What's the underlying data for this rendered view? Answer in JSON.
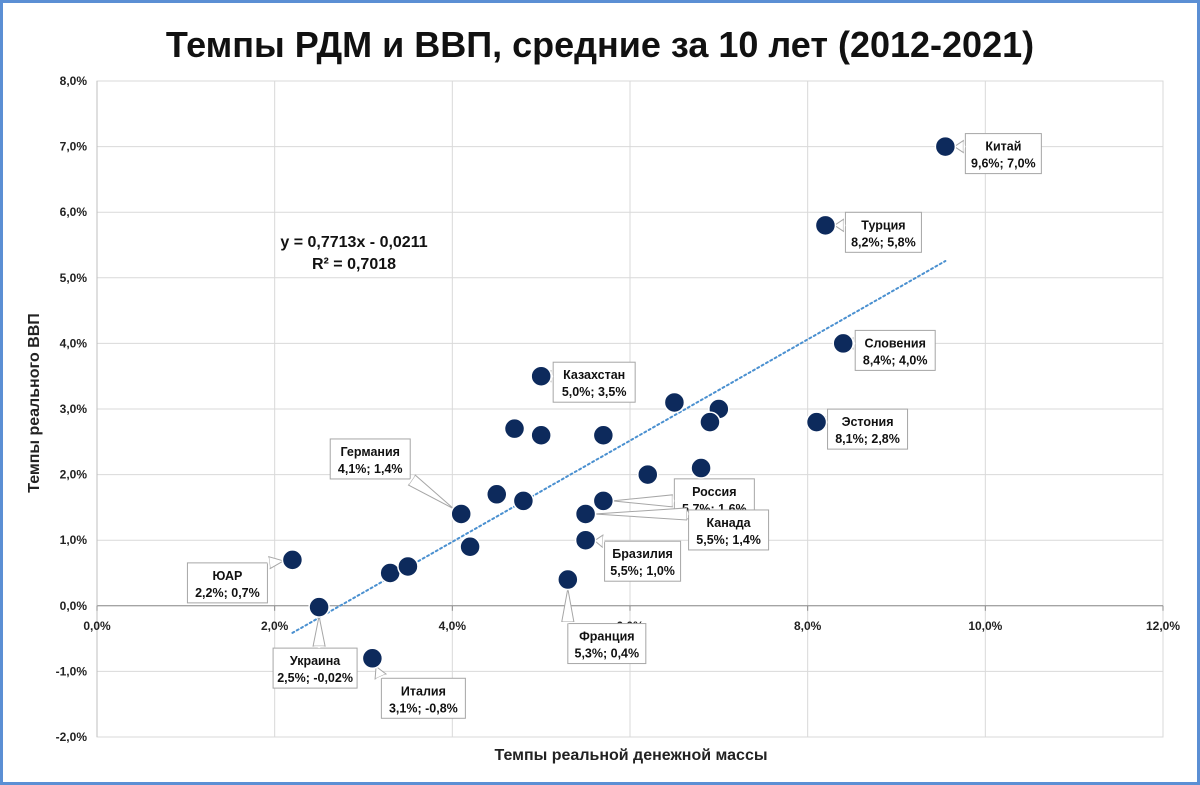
{
  "chart_data": {
    "type": "scatter",
    "title": "Темпы РДМ и ВВП, средние за 10 лет (2012-2021)",
    "xlabel": "Темпы реальной денежной массы",
    "ylabel": "Темпы реального ВВП",
    "xlim": [
      0,
      12
    ],
    "ylim": [
      -2,
      8
    ],
    "x_ticks": [
      0,
      2,
      4,
      6,
      8,
      10,
      12
    ],
    "y_ticks": [
      -2,
      -1,
      0,
      1,
      2,
      3,
      4,
      5,
      6,
      7,
      8
    ],
    "x_tick_labels": [
      "0,0%",
      "2,0%",
      "4,0%",
      "6,0%",
      "8,0%",
      "10,0%",
      "12,0%"
    ],
    "y_tick_labels": [
      "-2,0%",
      "-1,0%",
      "0,0%",
      "1,0%",
      "2,0%",
      "3,0%",
      "4,0%",
      "5,0%",
      "6,0%",
      "7,0%",
      "8,0%"
    ],
    "grid": true,
    "marker_color": "#0d2a5c",
    "trendline": {
      "slope": 0.7713,
      "intercept": -0.0211,
      "x_range": [
        2.2,
        9.55
      ],
      "color": "#4a90d0",
      "equation": "y = 0,7713x - 0,0211",
      "r_squared": "R² = 0,7018"
    },
    "points": [
      {
        "x": 9.55,
        "y": 7.0,
        "label": "Китай",
        "value_label": "9,6%; 7,0%"
      },
      {
        "x": 8.2,
        "y": 5.8,
        "label": "Турция",
        "value_label": "8,2%; 5,8%"
      },
      {
        "x": 8.4,
        "y": 4.0,
        "label": "Словения",
        "value_label": "8,4%; 4,0%"
      },
      {
        "x": 8.1,
        "y": 2.8,
        "label": "Эстония",
        "value_label": "8,1%; 2,8%"
      },
      {
        "x": 5.0,
        "y": 3.5,
        "label": "Казахстан",
        "value_label": "5,0%; 3,5%"
      },
      {
        "x": 5.7,
        "y": 1.6,
        "label": "Россия",
        "value_label": "5,7%; 1,6%"
      },
      {
        "x": 5.5,
        "y": 1.4,
        "label": "Канада",
        "value_label": "5,5%; 1,4%"
      },
      {
        "x": 5.5,
        "y": 1.0,
        "label": "Бразилия",
        "value_label": "5,5%; 1,0%"
      },
      {
        "x": 5.3,
        "y": 0.4,
        "label": "Франция",
        "value_label": "5,3%; 0,4%"
      },
      {
        "x": 4.1,
        "y": 1.4,
        "label": "Германия",
        "value_label": "4,1%; 1,4%"
      },
      {
        "x": 2.2,
        "y": 0.7,
        "label": "ЮАР",
        "value_label": "2,2%; 0,7%"
      },
      {
        "x": 2.5,
        "y": -0.02,
        "label": "Украина",
        "value_label": "2,5%; -0,02%"
      },
      {
        "x": 3.1,
        "y": -0.8,
        "label": "Италия",
        "value_label": "3,1%; -0,8%"
      },
      {
        "x": 6.5,
        "y": 3.1
      },
      {
        "x": 7.0,
        "y": 3.0
      },
      {
        "x": 6.9,
        "y": 2.8
      },
      {
        "x": 4.7,
        "y": 2.7
      },
      {
        "x": 5.0,
        "y": 2.6
      },
      {
        "x": 5.7,
        "y": 2.6
      },
      {
        "x": 6.2,
        "y": 2.0
      },
      {
        "x": 6.8,
        "y": 2.1
      },
      {
        "x": 4.5,
        "y": 1.7
      },
      {
        "x": 4.8,
        "y": 1.6
      },
      {
        "x": 4.2,
        "y": 0.9
      },
      {
        "x": 3.3,
        "y": 0.5
      },
      {
        "x": 3.5,
        "y": 0.6
      }
    ]
  }
}
